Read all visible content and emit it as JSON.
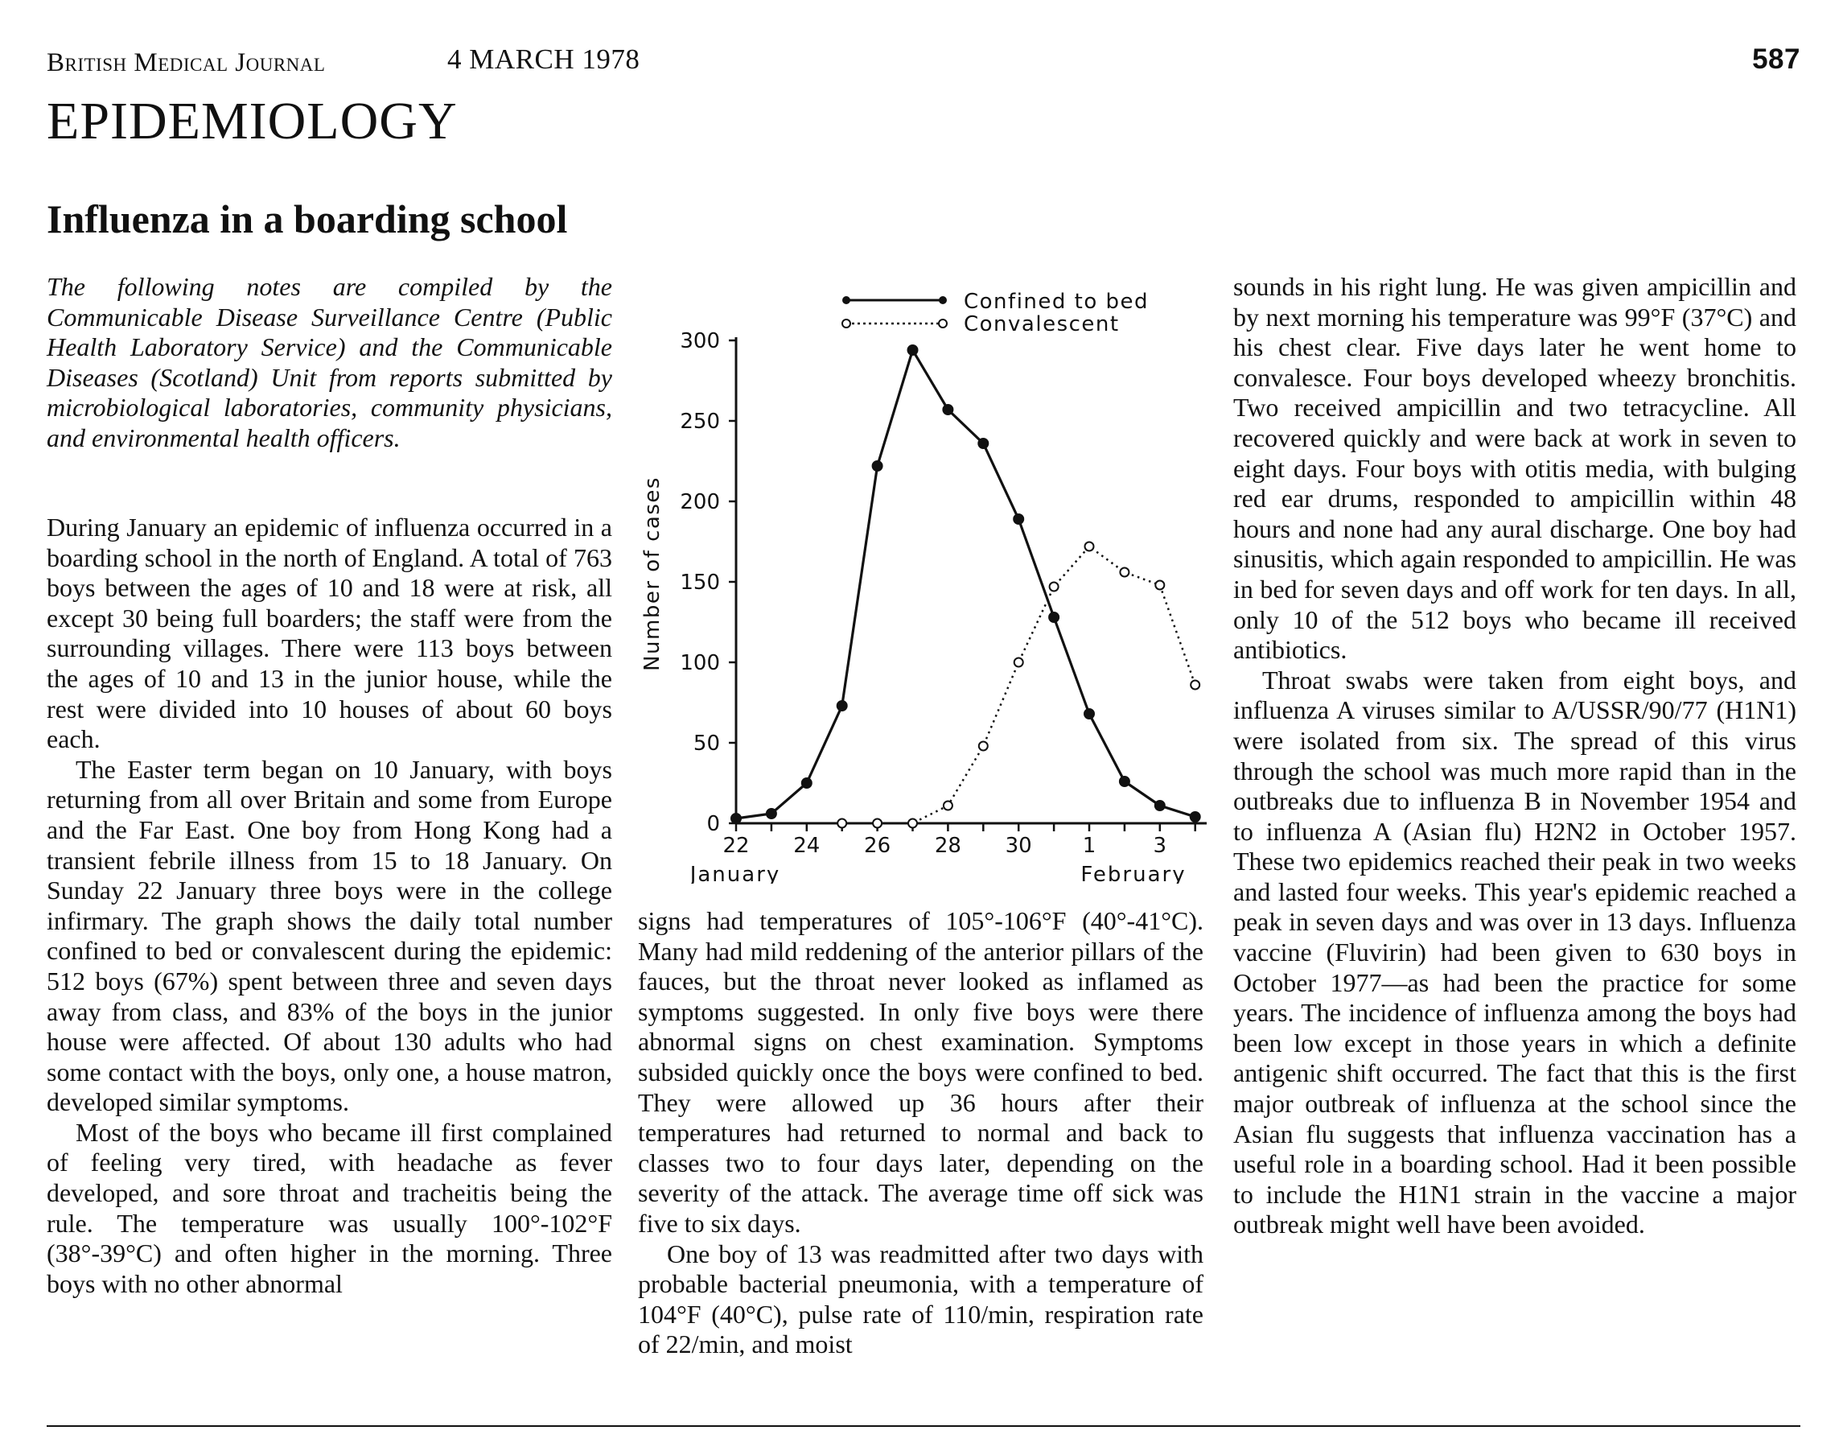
{
  "header": {
    "journal": "British Medical Journal",
    "date": "4 MARCH 1978",
    "page": "587"
  },
  "section": "EPIDEMIOLOGY",
  "title": "Influenza in a boarding school",
  "intro": "The following notes are compiled by the Communicable Disease Surveillance Centre (Public Health Laboratory Service) and the Communicable Diseases (Scotland) Unit from reports submitted by microbiological laboratories, community physicians, and environmental health officers.",
  "body": {
    "left": [
      "During January an epidemic of influenza occurred in a boarding school in the north of England. A total of 763 boys between the ages of 10 and 18 were at risk, all except 30 being full boarders; the staff were from the surrounding villages. There were 113 boys between the ages of 10 and 13 in the junior house, while the rest were divided into 10 houses of about 60 boys each.",
      "The Easter term began on 10 January, with boys returning from all over Britain and some from Europe and the Far East. One boy from Hong Kong had a transient febrile illness from 15 to 18 January. On Sunday 22 January three boys were in the college infirmary. The graph shows the daily total number confined to bed or convalescent during the epidemic: 512 boys (67%) spent between three and seven days away from class, and 83% of the boys in the junior house were affected. Of about 130 adults who had some contact with the boys, only one, a house matron, developed similar symptoms.",
      "Most of the boys who became ill first complained of feeling very tired, with headache as fever developed, and sore throat and tracheitis being the rule. The temperature was usually 100°-102°F (38°-39°C) and often higher in the morning. Three boys with no other abnormal"
    ],
    "middle": [
      "signs had temperatures of 105°-106°F (40°-41°C). Many had mild reddening of the anterior pillars of the fauces, but the throat never looked as inflamed as symptoms suggested. In only five boys were there abnormal signs on chest examination. Symptoms subsided quickly once the boys were confined to bed. They were allowed up 36 hours after their temperatures had returned to normal and back to classes two to four days later, depending on the severity of the attack. The average time off sick was five to six days.",
      "One boy of 13 was readmitted after two days with probable bacterial pneumonia, with a temperature of 104°F (40°C), pulse rate of 110/min, respiration rate of 22/min, and moist"
    ],
    "right": [
      "sounds in his right lung. He was given ampicillin and by next morning his temperature was 99°F (37°C) and his chest clear. Five days later he went home to convalesce. Four boys developed wheezy bronchitis. Two received ampicillin and two tetracycline. All recovered quickly and were back at work in seven to eight days. Four boys with otitis media, with bulging red ear drums, responded to ampicillin within 48 hours and none had any aural discharge. One boy had sinusitis, which again responded to ampicillin. He was in bed for seven days and off work for ten days. In all, only 10 of the 512 boys who became ill received antibiotics.",
      "Throat swabs were taken from eight boys, and influenza A viruses similar to A/USSR/90/77 (H1N1) were isolated from six. The spread of this virus through the school was much more rapid than in the outbreaks due to influenza B in November 1954 and to influenza A (Asian flu) H2N2 in October 1957. These two epidemics reached their peak in two weeks and lasted four weeks. This year's epidemic reached a peak in seven days and was over in 13 days. Influenza vaccine (Fluvirin) had been given to 630 boys in October 1977—as had been the practice for some years. The incidence of influenza among the boys had been low except in those years in which a definite antigenic shift occurred. The fact that this is the first major outbreak of influenza at the school since the Asian flu suggests that influenza vaccination has a useful role in a boarding school. Had it been possible to include the H1N1 strain in the vaccine a major outbreak might well have been avoided."
    ]
  },
  "chart_data": {
    "type": "line",
    "title": "",
    "xlabel": "",
    "ylabel": "Number of cases",
    "x": [
      22,
      23,
      24,
      25,
      26,
      27,
      28,
      29,
      30,
      31,
      1,
      2,
      3,
      4
    ],
    "x_tick_labels": [
      "22",
      "24",
      "26",
      "28",
      "30",
      "1",
      "3"
    ],
    "x_tick_values": [
      22,
      24,
      26,
      28,
      30,
      1,
      3
    ],
    "x_month_labels": [
      "January",
      "February"
    ],
    "yticks": [
      0,
      50,
      100,
      150,
      200,
      250,
      300
    ],
    "ylim": [
      0,
      300
    ],
    "series": [
      {
        "name": "Confined to bed",
        "style": "solid",
        "marker": "filled",
        "x": [
          22,
          23,
          24,
          25,
          26,
          27,
          28,
          29,
          30,
          31,
          1,
          2,
          3,
          4
        ],
        "values": [
          3,
          6,
          25,
          73,
          222,
          294,
          257,
          236,
          189,
          128,
          68,
          26,
          11,
          4
        ]
      },
      {
        "name": "Convalescent",
        "style": "dotted",
        "marker": "open",
        "x": [
          25,
          26,
          27,
          28,
          29,
          30,
          31,
          1,
          2,
          3,
          4
        ],
        "values": [
          0,
          0,
          0,
          11,
          48,
          100,
          147,
          172,
          156,
          148,
          86
        ]
      }
    ],
    "legend_position": "top"
  }
}
